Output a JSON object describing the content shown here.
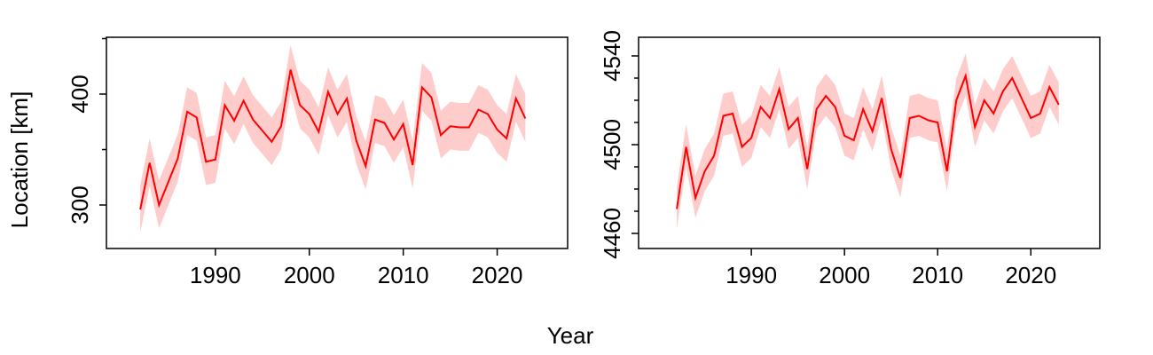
{
  "xlabel": "Year",
  "ylabel": "Location [km]",
  "chart_data": [
    {
      "type": "line",
      "color": "#ff0000",
      "band_color": "#ffcccc",
      "x": [
        1982,
        1983,
        1984,
        1985,
        1986,
        1987,
        1988,
        1989,
        1990,
        1991,
        1992,
        1993,
        1994,
        1995,
        1996,
        1997,
        1998,
        1999,
        2000,
        2001,
        2002,
        2003,
        2004,
        2005,
        2006,
        2007,
        2008,
        2009,
        2010,
        2011,
        2012,
        2013,
        2014,
        2015,
        2016,
        2017,
        2018,
        2019,
        2020,
        2021,
        2022,
        2023
      ],
      "values": [
        296,
        338,
        300,
        321,
        342,
        384,
        379,
        339,
        341,
        390,
        376,
        394,
        377,
        367,
        357,
        371,
        422,
        390,
        382,
        366,
        402,
        382,
        396,
        358,
        335,
        377,
        374,
        359,
        373,
        336,
        406,
        397,
        363,
        371,
        370,
        370,
        386,
        382,
        368,
        360,
        396,
        378
      ],
      "lower": [
        275,
        317,
        279,
        300,
        321,
        363,
        358,
        318,
        320,
        369,
        355,
        373,
        356,
        346,
        336,
        350,
        401,
        369,
        361,
        345,
        381,
        361,
        375,
        337,
        314,
        356,
        353,
        338,
        352,
        315,
        385,
        376,
        342,
        350,
        349,
        349,
        365,
        361,
        347,
        339,
        375,
        357
      ],
      "upper": [
        318,
        360,
        322,
        343,
        364,
        406,
        401,
        361,
        363,
        412,
        398,
        416,
        399,
        389,
        379,
        393,
        444,
        412,
        404,
        388,
        424,
        404,
        418,
        380,
        357,
        399,
        396,
        381,
        395,
        358,
        428,
        419,
        385,
        393,
        392,
        392,
        408,
        404,
        390,
        382,
        418,
        400
      ],
      "xlim": [
        1978.4,
        2027.5
      ],
      "xticks": [
        1990,
        2000,
        2010,
        2020
      ],
      "ylim": [
        260.8,
        451.2
      ],
      "yticks": [
        300,
        400
      ],
      "yminor_ticks": [
        350,
        450
      ]
    },
    {
      "type": "line",
      "color": "#ff0000",
      "band_color": "#ffcccc",
      "x": [
        1982,
        1983,
        1984,
        1985,
        1986,
        1987,
        1988,
        1989,
        1990,
        1991,
        1992,
        1993,
        1994,
        1995,
        1996,
        1997,
        1998,
        1999,
        2000,
        2001,
        2002,
        2003,
        2004,
        2005,
        2006,
        2007,
        2008,
        2009,
        2010,
        2011,
        2012,
        2013,
        2014,
        2015,
        2016,
        2017,
        2018,
        2019,
        2020,
        2021,
        2022,
        2023
      ],
      "values": [
        4471,
        4499,
        4476,
        4488,
        4495,
        4513,
        4514,
        4499,
        4503,
        4517,
        4512,
        4525,
        4507,
        4512,
        4489,
        4516,
        4522,
        4517,
        4504,
        4502,
        4516,
        4506,
        4521,
        4498,
        4485,
        4512,
        4513,
        4511,
        4510,
        4488,
        4520,
        4531,
        4508,
        4520,
        4514,
        4524,
        4530,
        4521,
        4512,
        4514,
        4526,
        4518
      ],
      "lower": [
        4462,
        4490,
        4467,
        4479,
        4486,
        4504,
        4505,
        4490,
        4494,
        4508,
        4503,
        4516,
        4498,
        4503,
        4480,
        4507,
        4513,
        4508,
        4495,
        4493,
        4507,
        4497,
        4512,
        4489,
        4476,
        4503,
        4504,
        4502,
        4501,
        4479,
        4511,
        4522,
        4499,
        4511,
        4505,
        4515,
        4521,
        4512,
        4503,
        4505,
        4517,
        4509
      ],
      "upper": [
        4481,
        4509,
        4486,
        4498,
        4505,
        4523,
        4524,
        4509,
        4513,
        4527,
        4522,
        4535,
        4517,
        4522,
        4499,
        4526,
        4532,
        4527,
        4514,
        4512,
        4526,
        4516,
        4531,
        4508,
        4495,
        4522,
        4523,
        4521,
        4520,
        4498,
        4530,
        4541,
        4518,
        4530,
        4524,
        4534,
        4540,
        4531,
        4522,
        4524,
        4536,
        4528
      ],
      "xlim": [
        1977.9,
        2027.4
      ],
      "xticks": [
        1990,
        2000,
        2010,
        2020
      ],
      "ylim": [
        4453.2,
        4548.4
      ],
      "yticks": [
        4460,
        4500,
        4540
      ],
      "yminor_ticks": [
        4470,
        4480,
        4490,
        4510,
        4520,
        4530
      ]
    }
  ]
}
